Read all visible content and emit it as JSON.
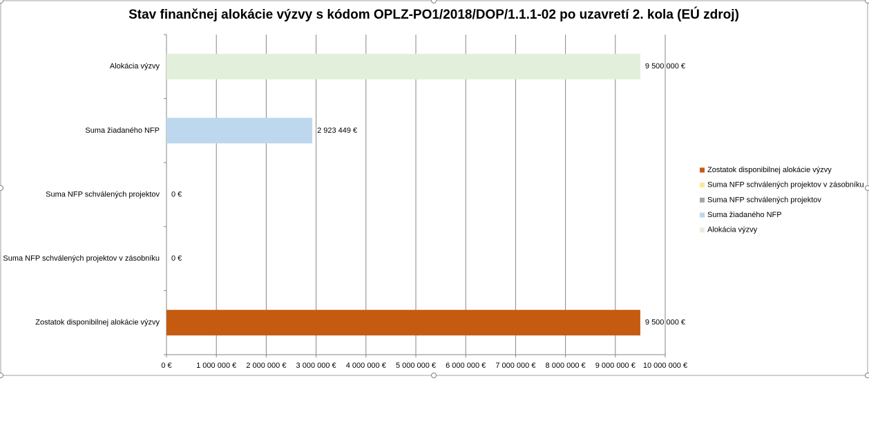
{
  "chart_data": {
    "type": "bar",
    "orientation": "horizontal",
    "title": "Stav finančnej alokácie výzvy s kódom OPLZ-PO1/2018/DOP/1.1.1-02 po uzavretí 2. kola (EÚ zdroj)",
    "categories": [
      "Alokácia výzvy",
      "Suma žiadaného NFP",
      "Suma NFP schválených projektov",
      "Suma NFP schválených projektov v zásobníku",
      "Zostatok disponibilnej alokácie výzvy"
    ],
    "values": [
      9500000,
      2923449,
      0,
      0,
      9500000
    ],
    "value_labels": [
      "9 500 000 €",
      "2 923 449 €",
      "0 €",
      "0 €",
      "9 500 000 €"
    ],
    "colors": [
      "#e2efda",
      "#bdd7ee",
      "#a5a5a5",
      "#ffe699",
      "#c55a11"
    ],
    "xlim": [
      0,
      10000000
    ],
    "xticks": [
      {
        "value": 0,
        "label": "0 €"
      },
      {
        "value": 1000000,
        "label": "1 000 000 €"
      },
      {
        "value": 2000000,
        "label": "2 000 000 €"
      },
      {
        "value": 3000000,
        "label": "3 000 000 €"
      },
      {
        "value": 4000000,
        "label": "4 000 000 €"
      },
      {
        "value": 5000000,
        "label": "5 000 000 €"
      },
      {
        "value": 6000000,
        "label": "6 000 000 €"
      },
      {
        "value": 7000000,
        "label": "7 000 000 €"
      },
      {
        "value": 8000000,
        "label": "8 000 000 €"
      },
      {
        "value": 9000000,
        "label": "9 000 000 €"
      },
      {
        "value": 10000000,
        "label": "10 000 000 €"
      }
    ],
    "grid": true,
    "legend": "right",
    "legend_order": "reversed"
  }
}
